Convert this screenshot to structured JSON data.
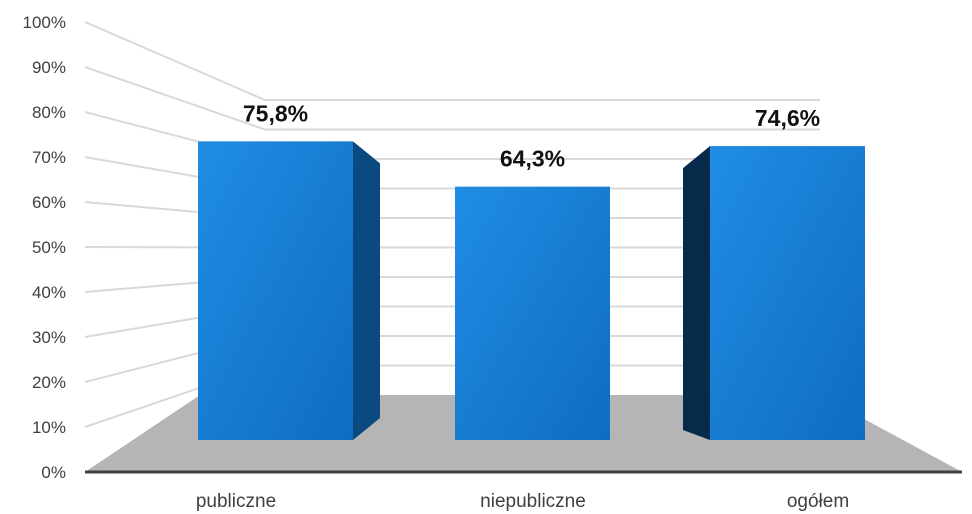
{
  "chart_data": {
    "type": "bar",
    "style": "3d-column",
    "categories": [
      "publiczne",
      "niepubliczne",
      "ogółem"
    ],
    "values": [
      75.8,
      64.3,
      74.6
    ],
    "data_labels": [
      "75,8%",
      "64,3%",
      "74,6%"
    ],
    "y_ticks": [
      "0%",
      "10%",
      "20%",
      "30%",
      "40%",
      "50%",
      "60%",
      "70%",
      "80%",
      "90%",
      "100%"
    ],
    "ylim": [
      0,
      100
    ],
    "grid": true,
    "legend": "none",
    "colors": {
      "bar_front": "#1679cf",
      "bar_side": "#0a4a80",
      "floor": "#b5b5b5",
      "grid": "#d9d9d9",
      "axis": "#404040"
    }
  }
}
